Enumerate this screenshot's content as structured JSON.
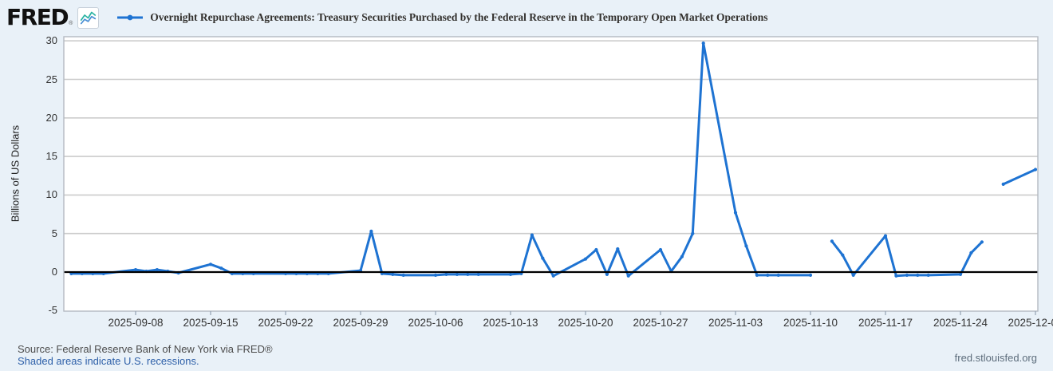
{
  "header": {
    "logo_text": "FRED",
    "registered": "®",
    "title": "Overnight Repurchase Agreements: Treasury Securities Purchased by the Federal Reserve in the Temporary Open Market Operations"
  },
  "footer": {
    "source": "Source: Federal Reserve Bank of New York via FRED®",
    "recessions": "Shaded areas indicate U.S. recessions.",
    "site": "fred.stlouisfed.org"
  },
  "colors": {
    "background": "#e9f1f8",
    "plot_background": "#ffffff",
    "plot_border": "#b4bac2",
    "grid": "#cccccc",
    "zero_line": "#000000",
    "line": "#1e73d2",
    "tick": "#93a2b2",
    "link": "#2d5fa8",
    "sparkline_blue": "#4a8fd4",
    "sparkline_teal": "#2bb3a3"
  },
  "chart_data": {
    "type": "line",
    "title": "Overnight Repurchase Agreements: Treasury Securities Purchased by the Federal Reserve in the Temporary Open Market Operations",
    "xlabel": "",
    "ylabel": "Billions of US Dollars",
    "ylim": [
      -5,
      30
    ],
    "yticks": [
      30,
      25,
      20,
      15,
      10,
      5,
      0,
      -5
    ],
    "xtick_labels": [
      "2025-09-08",
      "2025-09-15",
      "2025-09-22",
      "2025-09-29",
      "2025-10-06",
      "2025-10-13",
      "2025-10-20",
      "2025-10-27",
      "2025-11-03",
      "2025-11-10",
      "2025-11-17",
      "2025-11-24",
      "2025-12-01"
    ],
    "grid": true,
    "legend_position": "top",
    "series": [
      {
        "name": "Overnight Repurchase Agreements: Treasury Securities Purchased by the Federal Reserve in the Temporary Open Market Operations",
        "units": "Billions of US Dollars",
        "points": [
          [
            "2025-09-02",
            -0.2
          ],
          [
            "2025-09-03",
            -0.2
          ],
          [
            "2025-09-04",
            -0.2
          ],
          [
            "2025-09-05",
            -0.2
          ],
          [
            "2025-09-08",
            0.3
          ],
          [
            "2025-09-09",
            0.1
          ],
          [
            "2025-09-10",
            0.3
          ],
          [
            "2025-09-11",
            0.1
          ],
          [
            "2025-09-12",
            -0.1
          ],
          [
            "2025-09-15",
            1.0
          ],
          [
            "2025-09-16",
            0.5
          ],
          [
            "2025-09-17",
            -0.2
          ],
          [
            "2025-09-18",
            -0.2
          ],
          [
            "2025-09-19",
            -0.2
          ],
          [
            "2025-09-22",
            -0.2
          ],
          [
            "2025-09-23",
            -0.2
          ],
          [
            "2025-09-24",
            -0.2
          ],
          [
            "2025-09-25",
            -0.2
          ],
          [
            "2025-09-26",
            -0.2
          ],
          [
            "2025-09-29",
            0.2
          ],
          [
            "2025-09-30",
            5.3
          ],
          [
            "2025-10-01",
            -0.2
          ],
          [
            "2025-10-02",
            -0.3
          ],
          [
            "2025-10-03",
            -0.4
          ],
          [
            "2025-10-06",
            -0.4
          ],
          [
            "2025-10-07",
            -0.3
          ],
          [
            "2025-10-08",
            -0.3
          ],
          [
            "2025-10-09",
            -0.3
          ],
          [
            "2025-10-10",
            -0.3
          ],
          [
            "2025-10-13",
            -0.3
          ],
          [
            "2025-10-14",
            -0.2
          ],
          [
            "2025-10-15",
            4.8
          ],
          [
            "2025-10-16",
            1.8
          ],
          [
            "2025-10-17",
            -0.5
          ],
          [
            "2025-10-20",
            1.7
          ],
          [
            "2025-10-21",
            2.9
          ],
          [
            "2025-10-22",
            -0.3
          ],
          [
            "2025-10-23",
            3.0
          ],
          [
            "2025-10-24",
            -0.5
          ],
          [
            "2025-10-27",
            2.9
          ],
          [
            "2025-10-28",
            0.1
          ],
          [
            "2025-10-29",
            2.0
          ],
          [
            "2025-10-30",
            5.0
          ],
          [
            "2025-10-31",
            29.7
          ],
          [
            "2025-11-03",
            7.7
          ],
          [
            "2025-11-04",
            3.4
          ],
          [
            "2025-11-05",
            -0.4
          ],
          [
            "2025-11-06",
            -0.4
          ],
          [
            "2025-11-07",
            -0.4
          ],
          [
            "2025-11-10",
            -0.4
          ],
          [
            "2025-11-11",
            null
          ],
          [
            "2025-11-12",
            4.0
          ],
          [
            "2025-11-13",
            2.2
          ],
          [
            "2025-11-14",
            -0.4
          ],
          [
            "2025-11-17",
            4.7
          ],
          [
            "2025-11-18",
            -0.5
          ],
          [
            "2025-11-19",
            -0.4
          ],
          [
            "2025-11-20",
            -0.4
          ],
          [
            "2025-11-21",
            -0.4
          ],
          [
            "2025-11-24",
            -0.3
          ],
          [
            "2025-11-25",
            2.5
          ],
          [
            "2025-11-26",
            3.9
          ],
          [
            "2025-11-27",
            null
          ],
          [
            "2025-11-28",
            11.4
          ],
          [
            "2025-12-01",
            13.3
          ]
        ]
      }
    ]
  }
}
